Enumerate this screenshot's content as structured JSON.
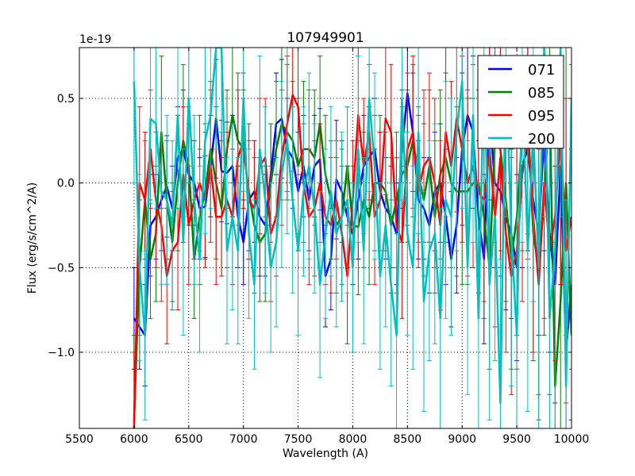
{
  "chart_data": {
    "type": "line",
    "title": "107949901",
    "xlabel": "Wavelength (A)",
    "ylabel": "Flux (erg/s/cm^2/A)",
    "y_offset_label": "1e-19",
    "xlim": [
      5500,
      10000
    ],
    "ylim": [
      -1.45,
      0.8
    ],
    "xticks": [
      5500,
      6000,
      6500,
      7000,
      7500,
      8000,
      8500,
      9000,
      9500,
      10000
    ],
    "yticks": [
      0.5,
      0.0,
      -0.5,
      -1.0
    ],
    "ytick_labels": [
      "0.5",
      "0.0",
      "−0.5",
      "−1.0"
    ],
    "grid": true,
    "legend_position": "top-right",
    "x_start": 6000,
    "x_step": 50,
    "series": [
      {
        "name": "071",
        "color": "#0000ff",
        "values": [
          -0.8,
          -0.85,
          -0.9,
          -0.25,
          -0.2,
          -0.1,
          -0.02,
          -0.15,
          0.15,
          0.2,
          0.05,
          0.0,
          -0.15,
          -0.14,
          0.1,
          0.38,
          0.07,
          0.06,
          0.1,
          -0.2,
          -0.35,
          -0.1,
          -0.05,
          -0.2,
          -0.25,
          0.05,
          0.35,
          0.38,
          0.2,
          0.15,
          -0.05,
          0.1,
          -0.1,
          0.1,
          0.14,
          -0.55,
          -0.45,
          0.02,
          -0.05,
          -0.2,
          -0.3,
          -0.1,
          0.1,
          0.15,
          0.2,
          -0.05,
          -0.15,
          -0.2,
          -0.3,
          0.2,
          0.53,
          0.3,
          -0.1,
          -0.15,
          -0.25,
          -0.05,
          0.0,
          -0.2,
          -0.45,
          -0.25,
          0.2,
          0.4,
          0.3,
          -0.2,
          -0.45,
          0.4,
          0.0,
          -0.05,
          -0.2,
          -0.3,
          -0.5,
          0.1,
          0.2,
          -0.1,
          -0.3,
          0.3,
          -0.3,
          -0.6,
          0.1,
          -1.0,
          -0.6
        ],
        "errors": [
          0.3,
          0.25,
          0.3,
          0.3,
          0.25,
          0.3,
          0.3,
          0.25,
          0.3,
          0.35,
          0.3,
          0.25,
          0.3,
          0.3,
          0.3,
          0.35,
          0.3,
          0.3,
          0.3,
          0.3,
          0.25,
          0.3,
          0.3,
          0.35,
          0.3,
          0.3,
          0.3,
          0.35,
          0.3,
          0.3,
          0.35,
          0.3,
          0.3,
          0.3,
          0.3,
          0.3,
          0.3,
          0.35,
          0.3,
          0.3,
          0.3,
          0.35,
          0.3,
          0.3,
          0.3,
          0.35,
          0.3,
          0.3,
          0.3,
          0.35,
          0.4,
          0.35,
          0.35,
          0.3,
          0.4,
          0.35,
          0.35,
          0.4,
          0.4,
          0.4,
          0.45,
          0.4,
          0.45,
          0.45,
          0.5,
          0.5,
          0.5,
          0.5,
          0.55,
          0.5,
          0.55,
          0.6,
          0.6,
          0.6,
          0.6,
          0.7,
          0.7,
          0.7,
          0.7,
          0.8,
          0.8
        ]
      },
      {
        "name": "085",
        "color": "#008000",
        "values": [
          -1.4,
          -0.5,
          -0.1,
          -0.45,
          -0.3,
          0.3,
          -0.1,
          -0.35,
          0.0,
          0.25,
          0.1,
          -0.45,
          -0.2,
          -0.05,
          0.2,
          0.0,
          -0.15,
          0.2,
          0.4,
          0.25,
          0.2,
          -0.05,
          -0.25,
          -0.35,
          -0.3,
          0.0,
          0.2,
          0.35,
          0.3,
          0.25,
          0.1,
          0.2,
          0.2,
          0.15,
          0.35,
          0.05,
          -0.1,
          -0.25,
          -0.2,
          0.1,
          -0.25,
          -0.26,
          -0.1,
          -0.2,
          0.0,
          0.0,
          -0.05,
          -0.25,
          -0.1,
          0.05,
          0.1,
          0.25,
          0.05,
          -0.1,
          0.1,
          -0.2,
          0.05,
          0.15,
          0.0,
          -0.05,
          -0.05,
          -0.05,
          0.0,
          0.0,
          -0.2,
          -0.5,
          0.25,
          0.2,
          -0.1,
          -0.45,
          -0.2,
          0.3,
          0.4,
          -0.3,
          -0.5,
          -0.1,
          0.5,
          -1.2,
          -0.7,
          0.0,
          -0.9
        ],
        "errors": [
          0.5,
          0.4,
          0.35,
          0.35,
          0.4,
          0.45,
          0.35,
          0.35,
          0.4,
          0.45,
          0.35,
          0.35,
          0.4,
          0.4,
          0.4,
          0.45,
          0.4,
          0.35,
          0.4,
          0.4,
          0.35,
          0.4,
          0.4,
          0.35,
          0.4,
          0.35,
          0.4,
          0.45,
          0.4,
          0.35,
          0.4,
          0.4,
          0.35,
          0.4,
          0.4,
          0.35,
          0.35,
          0.4,
          0.4,
          0.35,
          0.35,
          0.4,
          0.4,
          0.4,
          0.4,
          0.4,
          0.35,
          0.4,
          0.4,
          0.4,
          0.45,
          0.45,
          0.4,
          0.45,
          0.45,
          0.45,
          0.5,
          0.5,
          0.5,
          0.5,
          0.55,
          0.55,
          0.5,
          0.55,
          0.6,
          0.6,
          0.6,
          0.6,
          0.6,
          0.65,
          0.7,
          0.7,
          0.7,
          0.75,
          0.75,
          0.8,
          0.8,
          0.85,
          0.85,
          0.9,
          0.9
        ]
      },
      {
        "name": "095",
        "color": "#ff0000",
        "values": [
          -1.5,
          0.0,
          -0.1,
          0.2,
          -0.1,
          -0.25,
          -0.55,
          -0.4,
          -0.35,
          0.05,
          -0.25,
          -0.1,
          0.0,
          -0.1,
          0.1,
          -0.2,
          -0.2,
          -0.1,
          -0.2,
          0.15,
          0.25,
          -0.1,
          -0.15,
          0.1,
          0.15,
          -0.3,
          -0.2,
          0.15,
          0.35,
          0.52,
          0.45,
          0.0,
          -0.2,
          -0.15,
          0.0,
          -0.2,
          -0.25,
          -0.1,
          -0.3,
          -0.55,
          -0.1,
          0.4,
          0.1,
          0.3,
          -0.2,
          -0.1,
          0.38,
          0.3,
          -0.25,
          -0.35,
          0.2,
          0.3,
          -0.05,
          0.1,
          0.15,
          0.0,
          -0.25,
          0.3,
          0.1,
          0.38,
          0.2,
          0.0,
          0.1,
          -0.05,
          -0.1,
          0.2,
          -0.2,
          0.15,
          -0.3,
          -0.55,
          -0.4,
          0.05,
          0.3,
          -0.2,
          -0.6,
          0.0,
          -0.4,
          -0.2,
          0.3,
          -0.4,
          -0.2
        ],
        "errors": [
          0.5,
          0.45,
          0.4,
          0.35,
          0.4,
          0.45,
          0.4,
          0.35,
          0.4,
          0.4,
          0.35,
          0.35,
          0.4,
          0.4,
          0.45,
          0.4,
          0.35,
          0.4,
          0.4,
          0.4,
          0.4,
          0.35,
          0.4,
          0.4,
          0.35,
          0.4,
          0.35,
          0.4,
          0.4,
          0.45,
          0.4,
          0.35,
          0.4,
          0.4,
          0.35,
          0.4,
          0.4,
          0.35,
          0.4,
          0.4,
          0.35,
          0.4,
          0.4,
          0.4,
          0.4,
          0.4,
          0.45,
          0.4,
          0.4,
          0.45,
          0.45,
          0.45,
          0.45,
          0.45,
          0.5,
          0.5,
          0.5,
          0.5,
          0.5,
          0.55,
          0.55,
          0.55,
          0.6,
          0.6,
          0.6,
          0.6,
          0.65,
          0.65,
          0.7,
          0.7,
          0.7,
          0.75,
          0.75,
          0.8,
          0.8,
          0.8,
          0.85,
          0.85,
          0.9,
          0.9,
          0.9
        ]
      },
      {
        "name": "200",
        "color": "#00bfbf",
        "values": [
          0.6,
          -0.5,
          -0.9,
          0.38,
          0.35,
          -0.05,
          -0.1,
          -0.25,
          0.4,
          -0.35,
          0.5,
          -0.1,
          -0.45,
          0.25,
          0.4,
          0.8,
          0.9,
          -0.4,
          -0.2,
          -0.4,
          0.5,
          -0.3,
          -0.6,
          0.2,
          -0.1,
          -0.5,
          -0.35,
          0.05,
          0.25,
          -0.1,
          -0.4,
          -0.05,
          0.1,
          -0.15,
          -0.6,
          -0.3,
          -0.05,
          -0.3,
          -0.2,
          -0.1,
          -0.5,
          0.2,
          -0.4,
          0.5,
          0.1,
          -0.55,
          -0.25,
          -0.6,
          -0.9,
          0.5,
          -0.3,
          -0.5,
          0.3,
          -0.7,
          -0.4,
          -0.3,
          -0.8,
          -0.1,
          -0.2,
          0.3,
          0.6,
          -0.5,
          0.4,
          -0.8,
          0.7,
          -0.6,
          -0.2,
          -1.3,
          0.7,
          -0.3,
          -0.9,
          0.6,
          -0.4,
          0.3,
          -0.5,
          0.8,
          -0.8,
          -0.4,
          0.9,
          -1.2,
          0.5
        ],
        "errors": [
          0.6,
          0.55,
          0.5,
          0.5,
          0.5,
          0.55,
          0.5,
          0.5,
          0.55,
          0.55,
          0.5,
          0.5,
          0.55,
          0.55,
          0.55,
          0.6,
          0.6,
          0.55,
          0.55,
          0.55,
          0.55,
          0.5,
          0.5,
          0.55,
          0.55,
          0.5,
          0.5,
          0.55,
          0.55,
          0.55,
          0.5,
          0.5,
          0.55,
          0.5,
          0.55,
          0.5,
          0.5,
          0.55,
          0.5,
          0.55,
          0.5,
          0.55,
          0.55,
          0.55,
          0.55,
          0.55,
          0.6,
          0.6,
          0.6,
          0.6,
          0.6,
          0.6,
          0.6,
          0.65,
          0.65,
          0.65,
          0.65,
          0.7,
          0.7,
          0.7,
          0.75,
          0.75,
          0.75,
          0.8,
          0.8,
          0.8,
          0.85,
          0.85,
          0.9,
          0.9,
          0.9,
          0.95,
          0.95,
          1.0,
          1.0,
          1.0,
          1.05,
          1.05,
          1.1,
          1.1,
          1.1
        ]
      }
    ]
  }
}
